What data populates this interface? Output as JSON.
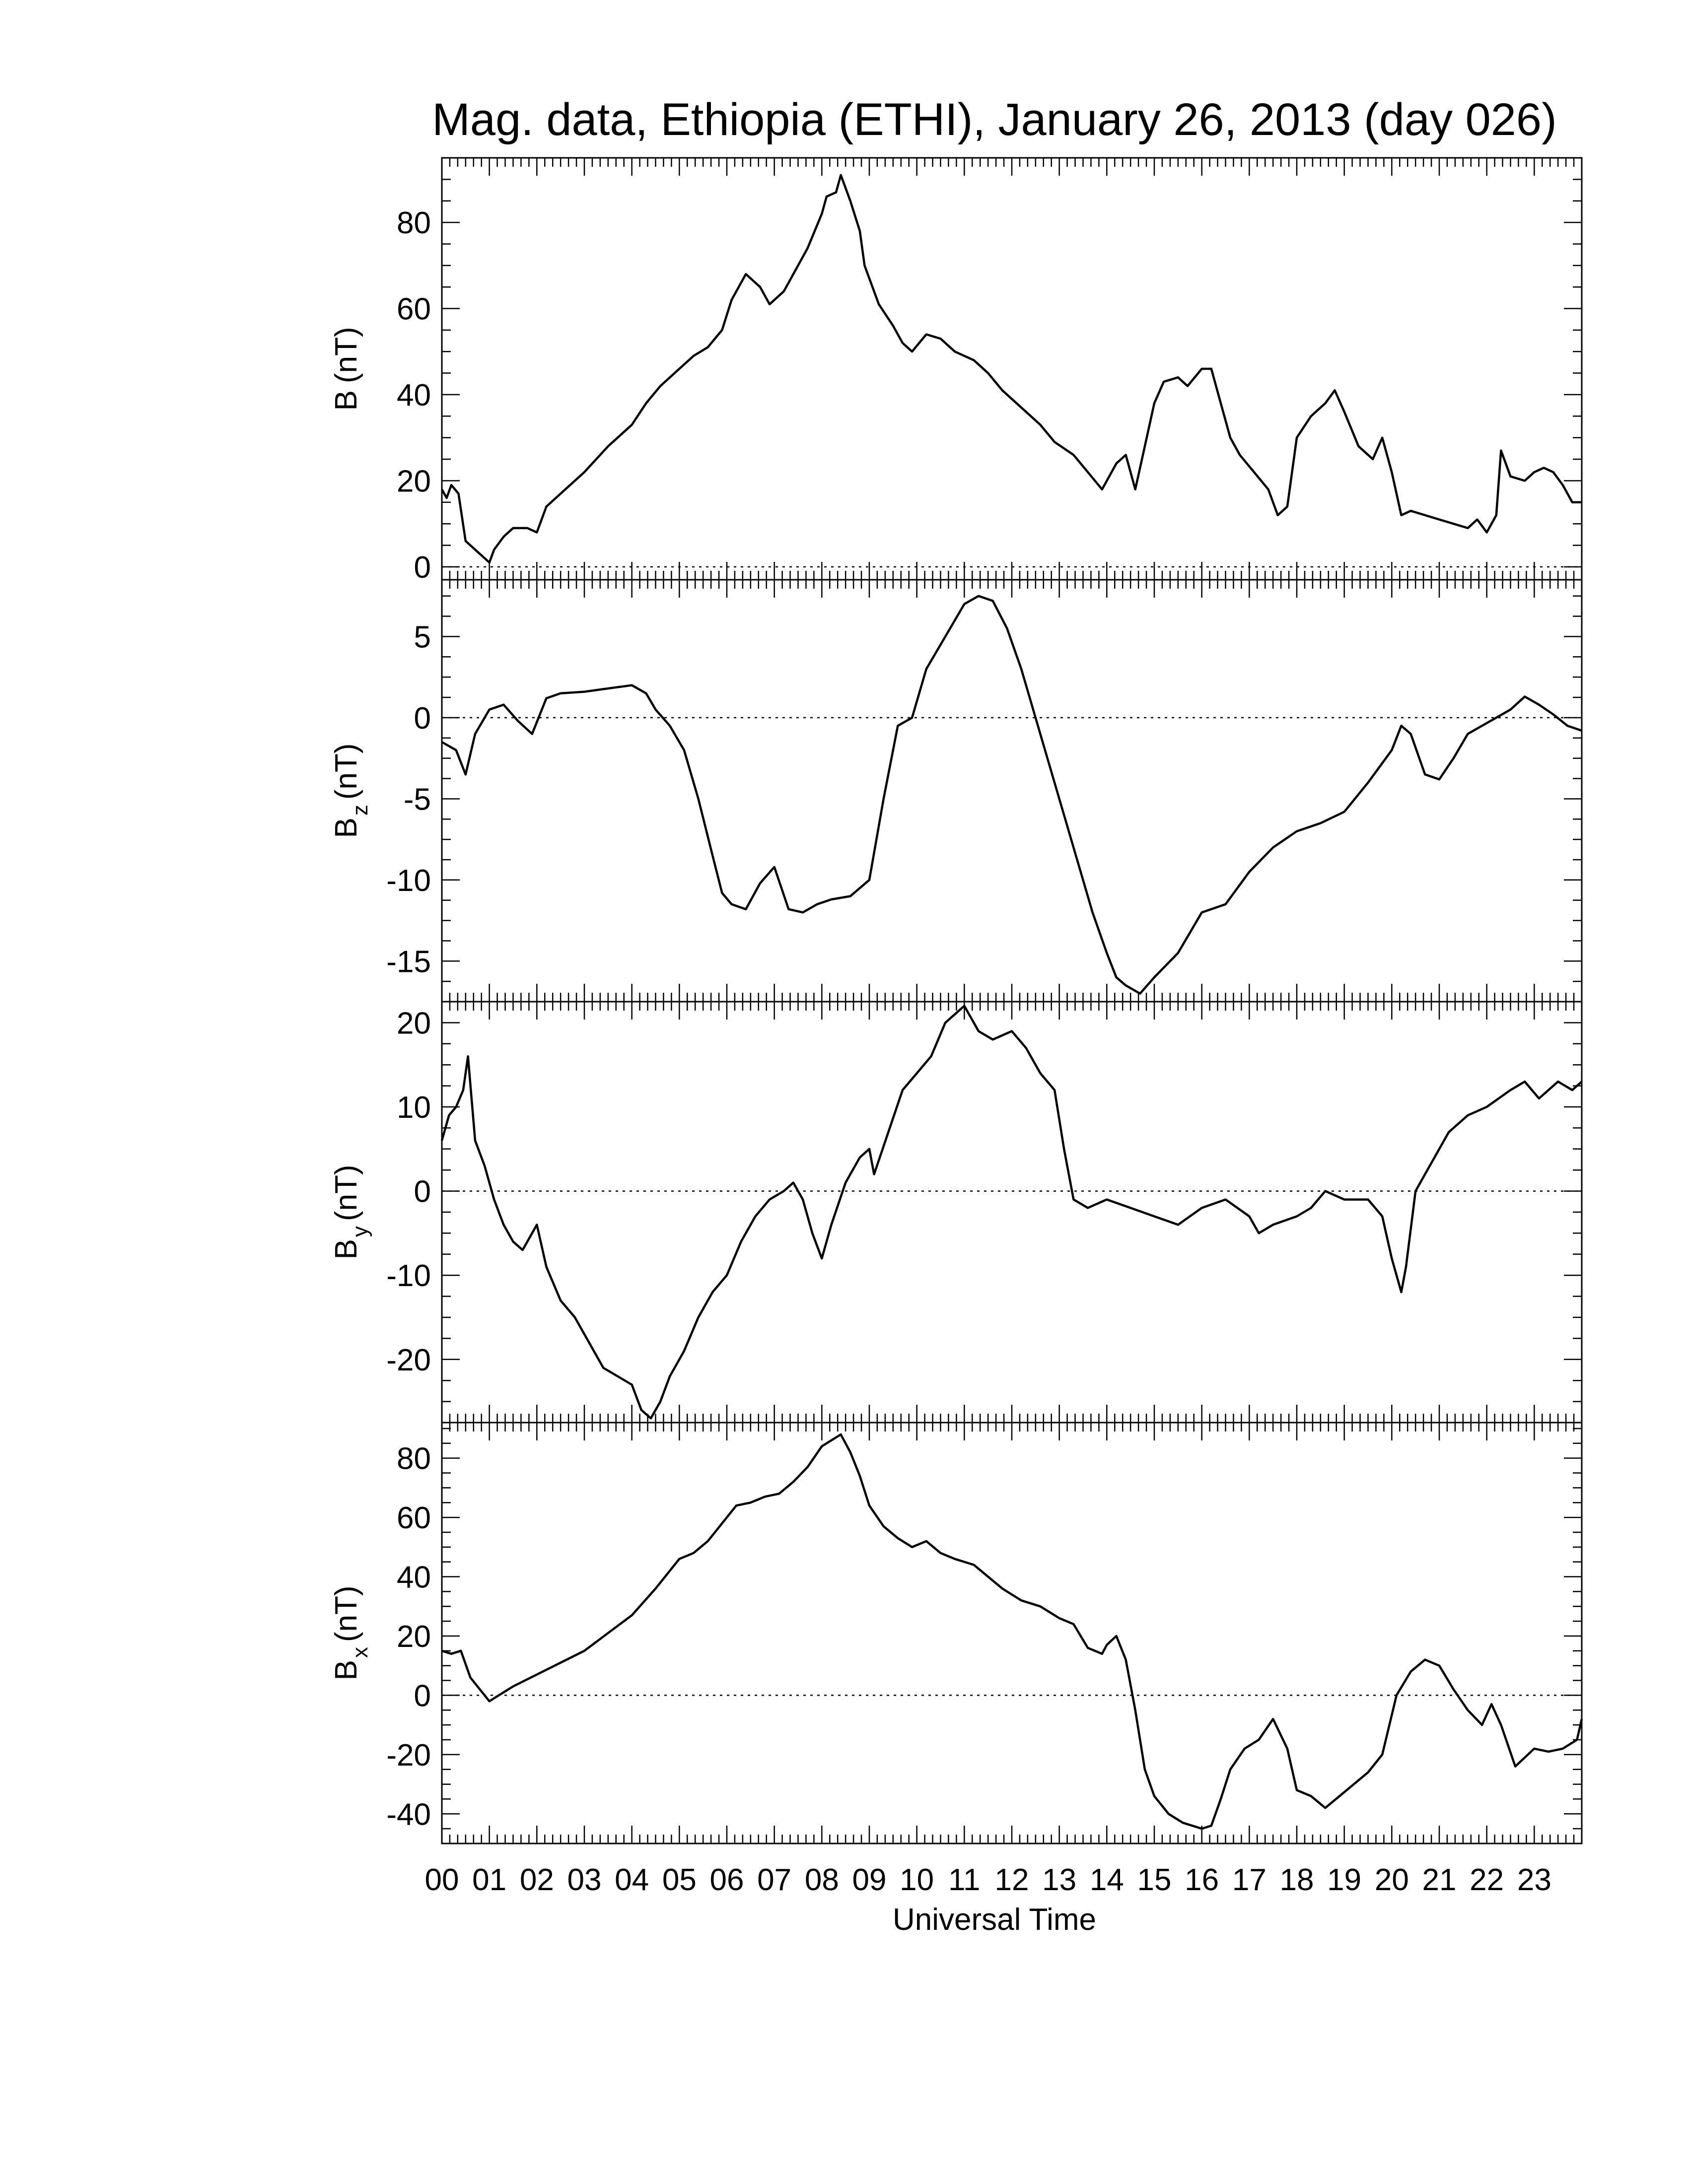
{
  "chart_data": {
    "type": "line",
    "title": "Mag. data, Ethiopia (ETHI), January 26, 2013 (day 026)",
    "xlabel": "Universal Time",
    "xlim": [
      0,
      24
    ],
    "x_tick_labels": [
      "00",
      "01",
      "02",
      "03",
      "04",
      "05",
      "06",
      "07",
      "08",
      "09",
      "10",
      "11",
      "12",
      "13",
      "14",
      "15",
      "16",
      "17",
      "18",
      "19",
      "20",
      "21",
      "22",
      "23"
    ],
    "grid": false,
    "panels": [
      {
        "ylabel": "B (nT)",
        "ylabel_main": "B",
        "ylabel_sub": "",
        "ylabel_unit": "(nT)",
        "ylim": [
          -3,
          95
        ],
        "yticks": [
          0,
          20,
          40,
          60,
          80
        ],
        "zero_line": true,
        "series": [
          {
            "x": [
              0.0,
              0.1,
              0.2,
              0.35,
              0.5,
              0.7,
              0.9,
              1.0,
              1.1,
              1.3,
              1.5,
              1.8,
              2.0,
              2.2,
              2.5,
              3.0,
              3.5,
              4.0,
              4.3,
              4.6,
              5.0,
              5.3,
              5.6,
              5.9,
              6.1,
              6.4,
              6.7,
              6.9,
              7.2,
              7.5,
              7.7,
              8.0,
              8.1,
              8.3,
              8.4,
              8.6,
              8.8,
              8.9,
              9.2,
              9.5,
              9.7,
              9.9,
              10.2,
              10.5,
              10.8,
              11.2,
              11.5,
              11.8,
              12.2,
              12.6,
              12.9,
              13.3,
              13.6,
              13.9,
              14.2,
              14.4,
              14.6,
              14.8,
              15.0,
              15.2,
              15.5,
              15.7,
              16.0,
              16.2,
              16.4,
              16.6,
              16.8,
              17.1,
              17.4,
              17.6,
              17.8,
              18.0,
              18.3,
              18.6,
              18.8,
              19.0,
              19.3,
              19.6,
              19.8,
              20.0,
              20.2,
              20.4,
              20.7,
              21.0,
              21.3,
              21.6,
              21.8,
              22.0,
              22.2,
              22.3,
              22.5,
              22.8,
              23.0,
              23.2,
              23.4,
              23.6,
              23.8,
              24.0
            ],
            "values": [
              18,
              16,
              19,
              17,
              6,
              4,
              2,
              1,
              4,
              7,
              9,
              9,
              8,
              14,
              17,
              22,
              28,
              33,
              38,
              42,
              46,
              49,
              51,
              55,
              62,
              68,
              65,
              61,
              64,
              70,
              74,
              82,
              86,
              87,
              91,
              85,
              78,
              70,
              61,
              56,
              52,
              50,
              54,
              53,
              50,
              48,
              45,
              41,
              37,
              33,
              29,
              26,
              22,
              18,
              24,
              26,
              18,
              28,
              38,
              43,
              44,
              42,
              46,
              46,
              38,
              30,
              26,
              22,
              18,
              12,
              14,
              30,
              35,
              38,
              41,
              36,
              28,
              25,
              30,
              22,
              12,
              13,
              12,
              11,
              10,
              9,
              11,
              8,
              12,
              27,
              21,
              20,
              22,
              23,
              22,
              19,
              15,
              15
            ]
          }
        ]
      },
      {
        "ylabel": "Bz (nT)",
        "ylabel_main": "B",
        "ylabel_sub": "z",
        "ylabel_unit": "(nT)",
        "ylim": [
          -17.5,
          8.5
        ],
        "yticks": [
          5,
          0,
          -5,
          -10,
          -15
        ],
        "zero_line": true,
        "series": [
          {
            "x": [
              0.0,
              0.3,
              0.5,
              0.7,
              1.0,
              1.3,
              1.6,
              1.9,
              2.2,
              2.5,
              3.0,
              3.5,
              4.0,
              4.3,
              4.5,
              4.8,
              5.1,
              5.4,
              5.7,
              5.9,
              6.1,
              6.4,
              6.7,
              7.0,
              7.3,
              7.6,
              7.9,
              8.2,
              8.6,
              9.0,
              9.3,
              9.6,
              9.9,
              10.2,
              10.6,
              10.9,
              11.0,
              11.3,
              11.6,
              11.9,
              12.2,
              12.5,
              12.8,
              13.1,
              13.4,
              13.7,
              14.0,
              14.2,
              14.4,
              14.7,
              15.0,
              15.5,
              16.0,
              16.5,
              17.0,
              17.5,
              18.0,
              18.5,
              19.0,
              19.5,
              20.0,
              20.2,
              20.4,
              20.7,
              21.0,
              21.3,
              21.6,
              21.9,
              22.2,
              22.5,
              22.8,
              23.1,
              23.4,
              23.7,
              24.0
            ],
            "values": [
              -1.5,
              -2.0,
              -3.5,
              -1.0,
              0.5,
              0.8,
              -0.2,
              -1.0,
              1.2,
              1.5,
              1.6,
              1.8,
              2.0,
              1.5,
              0.5,
              -0.5,
              -2.0,
              -5.0,
              -8.5,
              -10.8,
              -11.5,
              -11.8,
              -10.2,
              -9.2,
              -11.8,
              -12.0,
              -11.5,
              -11.2,
              -11.0,
              -10.0,
              -5.0,
              -0.5,
              0.0,
              3.0,
              5.0,
              6.5,
              7.0,
              7.5,
              7.2,
              5.5,
              3.0,
              0.0,
              -3.0,
              -6.0,
              -9.0,
              -12.0,
              -14.5,
              -16.0,
              -16.5,
              -17.0,
              -16.0,
              -14.5,
              -12.0,
              -11.5,
              -9.5,
              -8.0,
              -7.0,
              -6.5,
              -5.8,
              -4.0,
              -2.0,
              -0.5,
              -1.0,
              -3.5,
              -3.8,
              -2.5,
              -1.0,
              -0.5,
              0.0,
              0.5,
              1.3,
              0.8,
              0.2,
              -0.5,
              -0.8
            ]
          }
        ]
      },
      {
        "ylabel": "By (nT)",
        "ylabel_main": "B",
        "ylabel_sub": "y",
        "ylabel_unit": "(nT)",
        "ylim": [
          -27.5,
          22.5
        ],
        "yticks": [
          20,
          10,
          0,
          -10,
          -20
        ],
        "zero_line": true,
        "series": [
          {
            "x": [
              0.0,
              0.15,
              0.3,
              0.45,
              0.55,
              0.7,
              0.9,
              1.1,
              1.3,
              1.5,
              1.7,
              1.9,
              2.0,
              2.2,
              2.5,
              2.8,
              3.1,
              3.4,
              3.7,
              4.0,
              4.2,
              4.4,
              4.6,
              4.8,
              5.1,
              5.4,
              5.7,
              6.0,
              6.3,
              6.6,
              6.9,
              7.2,
              7.4,
              7.6,
              7.8,
              8.0,
              8.2,
              8.5,
              8.8,
              9.0,
              9.1,
              9.4,
              9.7,
              10.0,
              10.3,
              10.6,
              11.0,
              11.3,
              11.6,
              12.0,
              12.3,
              12.6,
              12.9,
              13.1,
              13.3,
              13.6,
              14.0,
              14.5,
              15.0,
              15.5,
              16.0,
              16.5,
              17.0,
              17.2,
              17.5,
              18.0,
              18.3,
              18.6,
              19.0,
              19.5,
              19.8,
              20.0,
              20.2,
              20.3,
              20.5,
              20.8,
              21.2,
              21.6,
              22.0,
              22.5,
              22.8,
              23.1,
              23.5,
              23.8,
              24.0
            ],
            "values": [
              6,
              9,
              10,
              12,
              16,
              6,
              3,
              -1,
              -4,
              -6,
              -7,
              -5,
              -4,
              -9,
              -13,
              -15,
              -18,
              -21,
              -22,
              -23,
              -26,
              -27,
              -25,
              -22,
              -19,
              -15,
              -12,
              -10,
              -6,
              -3,
              -1,
              0,
              1,
              -1,
              -5,
              -8,
              -4,
              1,
              4,
              5,
              2,
              7,
              12,
              14,
              16,
              20,
              22,
              19,
              18,
              19,
              17,
              14,
              12,
              5,
              -1,
              -2,
              -1,
              -2,
              -3,
              -4,
              -2,
              -1,
              -3,
              -5,
              -4,
              -3,
              -2,
              0,
              -1,
              -1,
              -3,
              -8,
              -12,
              -9,
              0,
              3,
              7,
              9,
              10,
              12,
              13,
              11,
              13,
              12,
              13
            ]
          }
        ]
      },
      {
        "ylabel": "Bx (nT)",
        "ylabel_main": "B",
        "ylabel_sub": "x",
        "ylabel_unit": "(nT)",
        "ylim": [
          -50,
          92
        ],
        "yticks": [
          80,
          60,
          40,
          20,
          0,
          -20,
          -40
        ],
        "zero_line": true,
        "series": [
          {
            "x": [
              0.0,
              0.2,
              0.4,
              0.6,
              0.8,
              1.0,
              1.2,
              1.5,
              2.0,
              2.5,
              3.0,
              3.5,
              4.0,
              4.5,
              5.0,
              5.3,
              5.6,
              5.9,
              6.2,
              6.5,
              6.8,
              7.1,
              7.4,
              7.7,
              8.0,
              8.2,
              8.4,
              8.6,
              8.8,
              9.0,
              9.3,
              9.6,
              9.9,
              10.2,
              10.5,
              10.8,
              11.2,
              11.5,
              11.8,
              12.2,
              12.6,
              13.0,
              13.3,
              13.6,
              13.9,
              14.0,
              14.2,
              14.4,
              14.6,
              14.8,
              15.0,
              15.3,
              15.6,
              16.0,
              16.2,
              16.4,
              16.6,
              16.9,
              17.2,
              17.5,
              17.8,
              18.0,
              18.3,
              18.6,
              18.9,
              19.2,
              19.5,
              19.8,
              20.1,
              20.4,
              20.7,
              21.0,
              21.3,
              21.6,
              21.9,
              22.1,
              22.3,
              22.6,
              23.0,
              23.3,
              23.6,
              23.9,
              24.0
            ],
            "values": [
              15,
              14,
              15,
              6,
              2,
              -2,
              0,
              3,
              7,
              11,
              15,
              21,
              27,
              36,
              46,
              48,
              52,
              58,
              64,
              65,
              67,
              68,
              72,
              77,
              84,
              86,
              88,
              82,
              74,
              64,
              57,
              53,
              50,
              52,
              48,
              46,
              44,
              40,
              36,
              32,
              30,
              26,
              24,
              16,
              14,
              17,
              20,
              12,
              -5,
              -25,
              -34,
              -40,
              -43,
              -45,
              -44,
              -35,
              -25,
              -18,
              -15,
              -8,
              -18,
              -32,
              -34,
              -38,
              -34,
              -30,
              -26,
              -20,
              0,
              8,
              12,
              10,
              2,
              -5,
              -10,
              -3,
              -10,
              -24,
              -18,
              -19,
              -18,
              -15,
              -8
            ]
          }
        ]
      }
    ]
  }
}
